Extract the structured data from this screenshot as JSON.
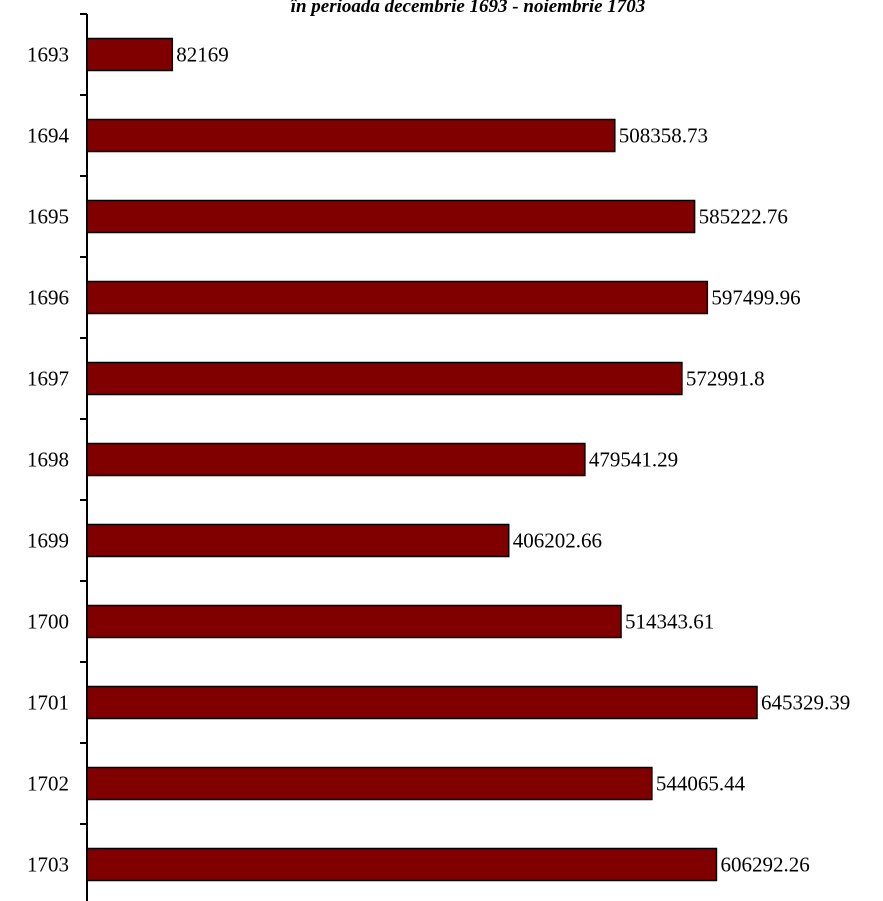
{
  "chart_data": {
    "type": "bar",
    "orientation": "horizontal",
    "title": "în perioada decembrie 1693 - noiembrie 1703",
    "categories": [
      "1693",
      "1694",
      "1695",
      "1696",
      "1697",
      "1698",
      "1699",
      "1700",
      "1701",
      "1702",
      "1703"
    ],
    "values": [
      82169,
      508358.73,
      585222.76,
      597499.96,
      572991.8,
      479541.29,
      406202.66,
      514343.61,
      645329.39,
      544065.44,
      606292.26
    ],
    "labels": [
      "82169",
      "508358.73",
      "585222.76",
      "597499.96",
      "572991.8",
      "479541.29",
      "406202.66",
      "514343.61",
      "645329.39",
      "544065.44",
      "606292.26"
    ],
    "xlim": [
      0,
      645329.39
    ],
    "grid": false,
    "legend": "none",
    "bar_color": "#800000",
    "edge_color": "#000000"
  }
}
